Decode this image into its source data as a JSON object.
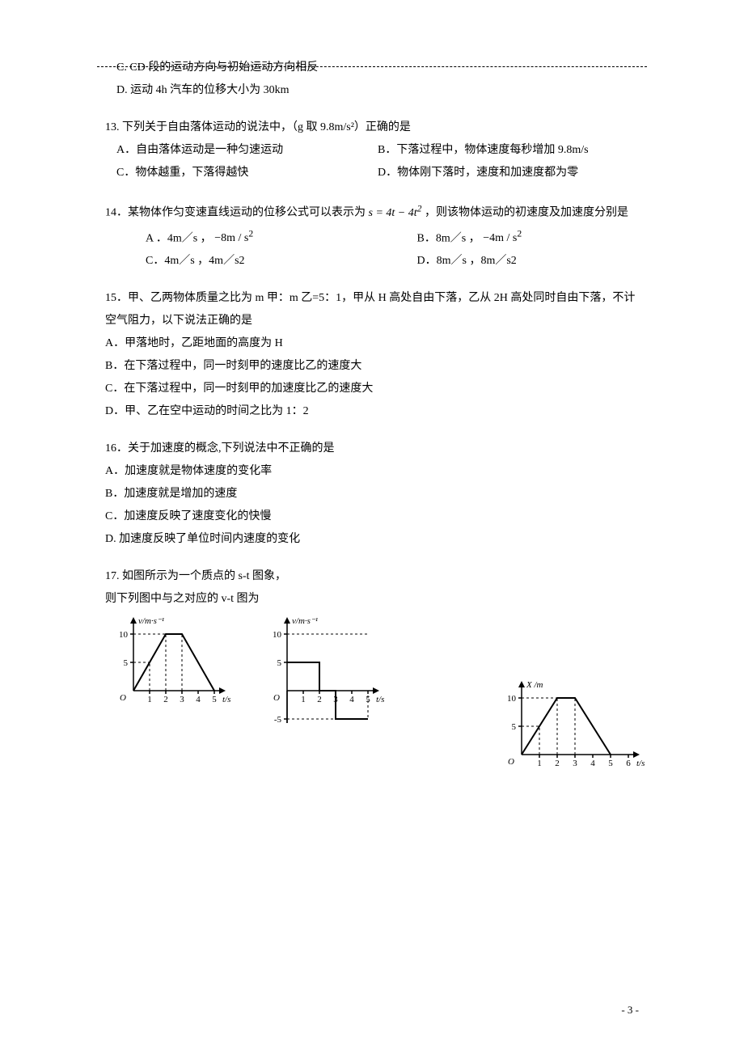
{
  "topdash": "_____________________________",
  "q12": {
    "c_text": "C. CD 段的运动方向与初始运动方向相反",
    "d_text": "D. 运动 4h 汽车的位移大小为 30km"
  },
  "q13": {
    "stem": "13. 下列关于自由落体运动的说法中，（g 取 9.8m/s²）正确的是",
    "a": "A．自由落体运动是一种匀速运动",
    "b": "B．下落过程中，物体速度每秒增加 9.8m/s",
    "c": "C．物体越重，下落得越快",
    "d": "D．物体刚下落时，速度和加速度都为零"
  },
  "q14": {
    "stem_pre": "14．某物体作匀变速直线运动的位移公式可以表示为",
    "formula_s": "s = 4t − 4t",
    "formula_sq": "2",
    "stem_post": " ，则该物体运动的初速度及加速度分别是",
    "a_pre": "A ．4m／s ，",
    "a_val": "−8m / s",
    "a_sq": "2",
    "b_pre": "B．8m／s ，",
    "b_val": "−4m / s",
    "b_sq": "2",
    "c": "C．4m／s ，4m／s2",
    "d": "D．8m／s ，8m／s2"
  },
  "q15": {
    "stem1": "15．甲、乙两物体质量之比为 m 甲：m 乙=5：1，甲从 H 高处自由下落，乙从 2H 高处同时自由下落，不计空气阻力，以下说法正确的是",
    "a": "A．甲落地时，乙距地面的高度为 H",
    "b": "B．在下落过程中，同一时刻甲的速度比乙的速度大",
    "c": "C．在下落过程中，同一时刻甲的加速度比乙的速度大",
    "d": "D．甲、乙在空中运动的时间之比为 1：2"
  },
  "q16": {
    "stem": "16．关于加速度的概念,下列说法中不正确的是",
    "a": "A．加速度就是物体速度的变化率",
    "b": "B．加速度就是增加的速度",
    "c": "C．加速度反映了速度变化的快慢",
    "d": "D. 加速度反映了单位时间内速度的变化"
  },
  "q17": {
    "stem1": "17. 如图所示为一个质点的 s‑t 图象，",
    "stem2": "则下列图中与之对应的 v‑t 图为"
  },
  "footer": "- 3 -",
  "chart_right": {
    "y_label": "X /m",
    "x_label": "t/s",
    "y_ticks": [
      {
        "v": 5,
        "l": "5"
      },
      {
        "v": 10,
        "l": "10"
      }
    ],
    "x_ticks": [
      {
        "v": 1,
        "l": "1"
      },
      {
        "v": 2,
        "l": "2"
      },
      {
        "v": 3,
        "l": "3"
      },
      {
        "v": 4,
        "l": "4"
      },
      {
        "v": 5,
        "l": "5"
      },
      {
        "v": 6,
        "l": "6"
      }
    ],
    "origin": "O",
    "curve": [
      [
        0,
        0
      ],
      [
        1,
        5
      ],
      [
        2,
        10
      ],
      [
        3,
        10
      ],
      [
        5,
        0
      ]
    ],
    "dash_x": [
      1,
      2,
      3,
      5
    ],
    "dash_y": [
      5,
      10
    ]
  },
  "chart_a": {
    "y_label": "v/m·s⁻¹",
    "x_label": "t/s",
    "y_ticks": [
      {
        "v": 5,
        "l": "5"
      },
      {
        "v": 10,
        "l": "10"
      }
    ],
    "x_ticks": [
      {
        "v": 1,
        "l": "1"
      },
      {
        "v": 2,
        "l": "2"
      },
      {
        "v": 3,
        "l": "3"
      },
      {
        "v": 4,
        "l": "4"
      },
      {
        "v": 5,
        "l": "5"
      }
    ],
    "origin": "O",
    "curve": [
      [
        0,
        0
      ],
      [
        1,
        5
      ],
      [
        2,
        10
      ],
      [
        3,
        10
      ],
      [
        5,
        0
      ]
    ],
    "dash_x": [
      1,
      2,
      3
    ],
    "dash_y": [
      5,
      10
    ]
  },
  "chart_b": {
    "y_label": "v/m·s⁻¹",
    "x_label": "t/s",
    "y_ticks": [
      {
        "v": -5,
        "l": "-5"
      },
      {
        "v": 5,
        "l": "5"
      },
      {
        "v": 10,
        "l": "10"
      }
    ],
    "x_ticks": [
      {
        "v": 1,
        "l": "1"
      },
      {
        "v": 2,
        "l": "2"
      },
      {
        "v": 3,
        "l": "3"
      },
      {
        "v": 4,
        "l": "4"
      },
      {
        "v": 5,
        "l": "5"
      }
    ],
    "origin": "O",
    "curve": [
      [
        0,
        5
      ],
      [
        2,
        5
      ],
      [
        2,
        0
      ],
      [
        3,
        0
      ],
      [
        3,
        -5
      ],
      [
        5,
        -5
      ]
    ],
    "dash_x": [
      2,
      3,
      5
    ],
    "dash_y": [
      -5,
      5,
      10
    ]
  }
}
